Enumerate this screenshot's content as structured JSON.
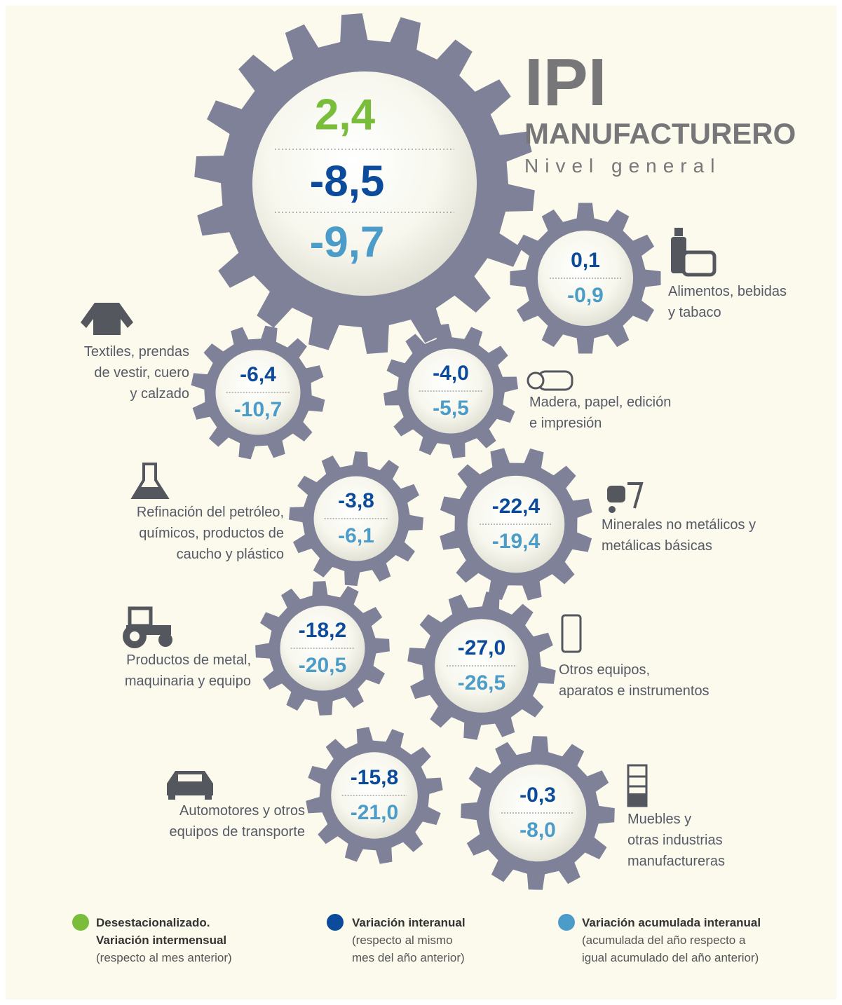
{
  "header": {
    "title": "IPI",
    "subtitle": "MANUFACTURERO",
    "caption": "Nivel general"
  },
  "general": {
    "desestacionalizado": "2,4",
    "interanual": "-8,5",
    "acumulada": "-9,7"
  },
  "sectors": [
    {
      "label": [
        "Alimentos, bebidas",
        "y tabaco"
      ],
      "interanual": "0,1",
      "acumulada": "-0,9"
    },
    {
      "label": [
        "Textiles, prendas",
        "de vestir, cuero",
        "y calzado"
      ],
      "interanual": "-6,4",
      "acumulada": "-10,7"
    },
    {
      "label": [
        "Madera, papel, edición",
        "e impresión"
      ],
      "interanual": "-4,0",
      "acumulada": "-5,5"
    },
    {
      "label": [
        "Refinación del petróleo,",
        "químicos, productos de",
        "caucho y plástico"
      ],
      "interanual": "-3,8",
      "acumulada": "-6,1"
    },
    {
      "label": [
        "Minerales no metálicos y",
        "metálicas básicas"
      ],
      "interanual": "-22,4",
      "acumulada": "-19,4"
    },
    {
      "label": [
        "Productos de metal,",
        "maquinaria y equipo"
      ],
      "interanual": "-18,2",
      "acumulada": "-20,5"
    },
    {
      "label": [
        "Otros equipos,",
        "aparatos e instrumentos"
      ],
      "interanual": "-27,0",
      "acumulada": "-26,5"
    },
    {
      "label": [
        "Automotores y otros",
        "equipos de transporte"
      ],
      "interanual": "-15,8",
      "acumulada": "-21,0"
    },
    {
      "label": [
        "Muebles y",
        "otras industrias",
        "manufactureras"
      ],
      "interanual": "-0,3",
      "acumulada": "-8,0"
    }
  ],
  "legend": [
    {
      "title": [
        "Desestacionalizado.",
        "Variación intermensual"
      ],
      "note": [
        "(respecto al mes anterior)"
      ]
    },
    {
      "title": [
        "Variación interanual"
      ],
      "note": [
        "(respecto al mismo",
        "mes del año anterior)"
      ]
    },
    {
      "title": [
        "Variación acumulada interanual"
      ],
      "note": [
        "(acumulada del año respecto a",
        "igual acumulado del año anterior)"
      ]
    }
  ]
}
